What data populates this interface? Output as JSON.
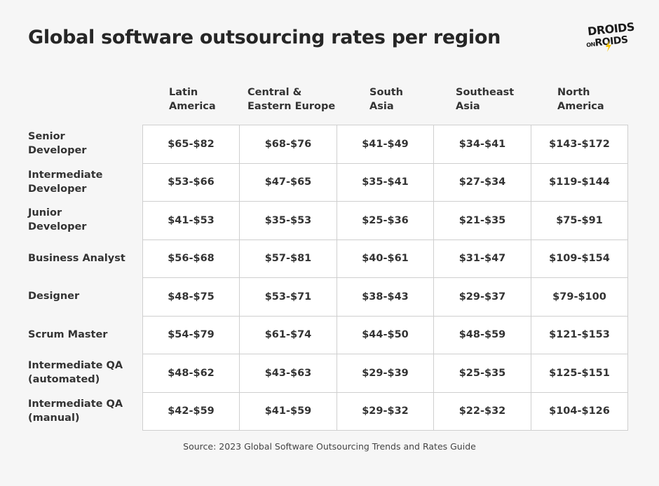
{
  "chart_data": {
    "type": "table",
    "title": "Global software outsourcing rates per region",
    "columns": [
      [
        "Latin",
        "America"
      ],
      [
        "Central &",
        "Eastern Europe"
      ],
      [
        "South",
        "Asia"
      ],
      [
        "Southeast",
        "Asia"
      ],
      [
        "North",
        "America"
      ]
    ],
    "rows": [
      {
        "label": [
          "Senior",
          "Developer"
        ],
        "values": [
          "$65-$82",
          "$68-$76",
          "$41-$49",
          "$34-$41",
          "$143-$172"
        ]
      },
      {
        "label": [
          "Intermediate",
          "Developer"
        ],
        "values": [
          "$53-$66",
          "$47-$65",
          "$35-$41",
          "$27-$34",
          "$119-$144"
        ]
      },
      {
        "label": [
          "Junior",
          "Developer"
        ],
        "values": [
          "$41-$53",
          "$35-$53",
          "$25-$36",
          "$21-$35",
          "$75-$91"
        ]
      },
      {
        "label": [
          "Business Analyst"
        ],
        "values": [
          "$56-$68",
          "$57-$81",
          "$40-$61",
          "$31-$47",
          "$109-$154"
        ]
      },
      {
        "label": [
          "Designer"
        ],
        "values": [
          "$48-$75",
          "$53-$71",
          "$38-$43",
          "$29-$37",
          "$79-$100"
        ]
      },
      {
        "label": [
          "Scrum Master"
        ],
        "values": [
          "$54-$79",
          "$61-$74",
          "$44-$50",
          "$48-$59",
          "$121-$153"
        ]
      },
      {
        "label": [
          "Intermediate QA",
          "(automated)"
        ],
        "values": [
          "$48-$62",
          "$43-$63",
          "$29-$39",
          "$25-$35",
          "$125-$151"
        ]
      },
      {
        "label": [
          "Intermediate QA",
          "(manual)"
        ],
        "values": [
          "$42-$59",
          "$41-$59",
          "$29-$32",
          "$22-$32",
          "$104-$126"
        ]
      }
    ],
    "source": "Source: 2023 Global Software Outsourcing Trends and Rates Guide"
  },
  "logo": {
    "line1": "DROIDS",
    "on": "ON",
    "line2": "ROIDS"
  },
  "colors": {
    "background": "#f6f6f6",
    "cell": "#ffffff",
    "border": "#cfcfcf",
    "text": "#333333",
    "bolt": "#f5c400"
  }
}
